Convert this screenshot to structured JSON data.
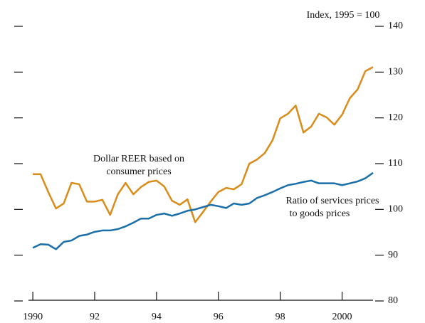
{
  "chart_data": {
    "type": "line",
    "y_axis_label": "Index, 1995 = 100",
    "x": [
      1990,
      1990.25,
      1990.5,
      1990.75,
      1991,
      1991.25,
      1991.5,
      1991.75,
      1992,
      1992.25,
      1992.5,
      1992.75,
      1993,
      1993.25,
      1993.5,
      1993.75,
      1994,
      1994.25,
      1994.5,
      1994.75,
      1995,
      1995.25,
      1995.5,
      1995.75,
      1996,
      1996.25,
      1996.5,
      1996.75,
      1997,
      1997.25,
      1997.5,
      1997.75,
      1998,
      1998.25,
      1998.5,
      1998.75,
      1999,
      1999.25,
      1999.5,
      1999.75,
      2000,
      2000.25,
      2000.5,
      2000.75,
      2001
    ],
    "series": [
      {
        "color": "#d98c1a",
        "values": [
          107.7,
          107.7,
          103.8,
          100.2,
          101.3,
          105.8,
          105.5,
          101.7,
          101.7,
          102.1,
          98.8,
          103.3,
          105.8,
          103.3,
          104.9,
          106.0,
          106.3,
          105.0,
          101.9,
          101.0,
          102.2,
          97.2,
          99.4,
          101.7,
          103.8,
          104.7,
          104.4,
          105.5,
          110.0,
          110.9,
          112.3,
          115.1,
          119.9,
          120.9,
          122.7,
          116.8,
          118.1,
          120.9,
          120.1,
          118.5,
          120.7,
          124.3,
          126.2,
          130.2,
          131.1
        ]
      },
      {
        "color": "#1a6fa8",
        "values": [
          91.6,
          92.4,
          92.3,
          91.3,
          92.9,
          93.2,
          94.2,
          94.5,
          95.1,
          95.4,
          95.4,
          95.7,
          96.3,
          97.1,
          98.0,
          98.0,
          98.8,
          99.1,
          98.6,
          99.1,
          99.7,
          100.0,
          100.5,
          101.0,
          100.7,
          100.3,
          101.3,
          101.0,
          101.3,
          102.5,
          103.1,
          103.8,
          104.6,
          105.3,
          105.6,
          106.0,
          106.3,
          105.7,
          105.7,
          105.7,
          105.3,
          105.7,
          106.1,
          106.8,
          108.0
        ]
      }
    ],
    "annotations": [
      {
        "lines": [
          "Dollar REER based on",
          "consumer prices"
        ]
      },
      {
        "lines": [
          "Ratio of services prices",
          "to goods prices"
        ]
      }
    ],
    "xlim": [
      1989.86,
      2001
    ],
    "xticks": [
      {
        "value": 1990,
        "label": "1990"
      },
      {
        "value": 1992,
        "label": "92"
      },
      {
        "value": 1994,
        "label": "94"
      },
      {
        "value": 1996,
        "label": "96"
      },
      {
        "value": 1998,
        "label": "98"
      },
      {
        "value": 2000,
        "label": "2000"
      }
    ],
    "ylim": [
      80,
      140
    ],
    "yticks": [
      80,
      90,
      100,
      110,
      120,
      130,
      140
    ]
  }
}
